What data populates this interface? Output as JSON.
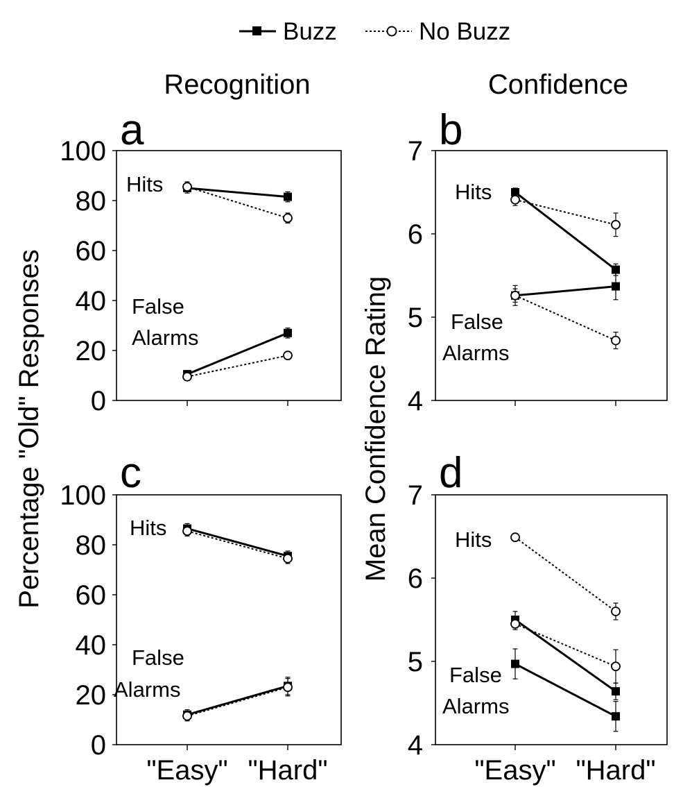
{
  "legend": {
    "items": [
      {
        "label": "Buzz",
        "marker": "filled-square",
        "line": "solid"
      },
      {
        "label": "No Buzz",
        "marker": "open-circle",
        "line": "dotted"
      }
    ]
  },
  "column_titles": [
    "Recognition",
    "Confidence"
  ],
  "ylabels": {
    "left": "Percentage \"Old\" Responses",
    "right": "Mean Confidence Rating"
  },
  "colors": {
    "ink": "#000000",
    "background": "#ffffff"
  },
  "chart_data": [
    {
      "panel": "a",
      "type": "line",
      "categories": [
        "\"Easy\"",
        "\"Hard\""
      ],
      "show_x_ticks": false,
      "ylim": [
        0,
        100
      ],
      "yticks": [
        0,
        20,
        40,
        60,
        80,
        100
      ],
      "annotations": [
        "Hits",
        "False",
        "Alarms"
      ],
      "series": [
        {
          "legend": "Buzz",
          "group": "Hits",
          "values": [
            85,
            81.5
          ],
          "errors": [
            2,
            2
          ]
        },
        {
          "legend": "No Buzz",
          "group": "Hits",
          "values": [
            85.5,
            73
          ],
          "errors": [
            2,
            2
          ]
        },
        {
          "legend": "Buzz",
          "group": "False Alarms",
          "values": [
            10.5,
            27
          ],
          "errors": [
            1.5,
            2
          ]
        },
        {
          "legend": "No Buzz",
          "group": "False Alarms",
          "values": [
            9.5,
            18
          ],
          "errors": [
            1.5,
            1.5
          ]
        }
      ]
    },
    {
      "panel": "b",
      "type": "line",
      "categories": [
        "\"Easy\"",
        "\"Hard\""
      ],
      "show_x_ticks": false,
      "ylim": [
        4,
        7
      ],
      "yticks": [
        4,
        5,
        6,
        7
      ],
      "annotations": [
        "Hits",
        "False",
        "Alarms"
      ],
      "series": [
        {
          "legend": "Buzz",
          "group": "Hits",
          "values": [
            6.5,
            5.57
          ],
          "errors": [
            0.05,
            0.07
          ]
        },
        {
          "legend": "No Buzz",
          "group": "Hits",
          "values": [
            6.41,
            6.11
          ],
          "errors": [
            0.07,
            0.14
          ]
        },
        {
          "legend": "Buzz",
          "group": "False Alarms",
          "values": [
            5.26,
            5.37
          ],
          "errors": [
            0.12,
            0.16
          ]
        },
        {
          "legend": "No Buzz",
          "group": "False Alarms",
          "values": [
            5.26,
            4.72
          ],
          "errors": [
            0.08,
            0.1
          ]
        }
      ]
    },
    {
      "panel": "c",
      "type": "line",
      "categories": [
        "\"Easy\"",
        "\"Hard\""
      ],
      "show_x_ticks": true,
      "ylim": [
        0,
        100
      ],
      "yticks": [
        0,
        20,
        40,
        60,
        80,
        100
      ],
      "annotations": [
        "Hits",
        "False",
        "Alarms"
      ],
      "series": [
        {
          "legend": "Buzz",
          "group": "Hits",
          "values": [
            86.5,
            75.5
          ],
          "errors": [
            2,
            2
          ]
        },
        {
          "legend": "No Buzz",
          "group": "Hits",
          "values": [
            85.5,
            74.5
          ],
          "errors": [
            2,
            2
          ]
        },
        {
          "legend": "Buzz",
          "group": "False Alarms",
          "values": [
            12,
            23.5
          ],
          "errors": [
            2,
            3.5
          ]
        },
        {
          "legend": "No Buzz",
          "group": "False Alarms",
          "values": [
            11.5,
            23
          ],
          "errors": [
            2,
            3.5
          ]
        }
      ]
    },
    {
      "panel": "d",
      "type": "line",
      "categories": [
        "\"Easy\"",
        "\"Hard\""
      ],
      "show_x_ticks": true,
      "ylim": [
        4,
        7
      ],
      "yticks": [
        4,
        5,
        6,
        7
      ],
      "annotations": [
        "Hits",
        "False",
        "Alarms"
      ],
      "series": [
        {
          "legend": "No Buzz",
          "group": "Hits",
          "values": [
            6.49,
            5.6
          ],
          "errors": [
            0.02,
            0.1
          ]
        },
        {
          "legend": "Buzz",
          "group": "Hits",
          "values": [
            5.5,
            4.64
          ],
          "errors": [
            0.1,
            0.1
          ]
        },
        {
          "legend": "No Buzz",
          "group": "False Alarms",
          "values": [
            5.45,
            4.94
          ],
          "errors": [
            0.07,
            0.2
          ]
        },
        {
          "legend": "Buzz",
          "group": "False Alarms",
          "values": [
            4.97,
            4.34
          ],
          "errors": [
            0.18,
            0.18
          ]
        }
      ]
    }
  ]
}
